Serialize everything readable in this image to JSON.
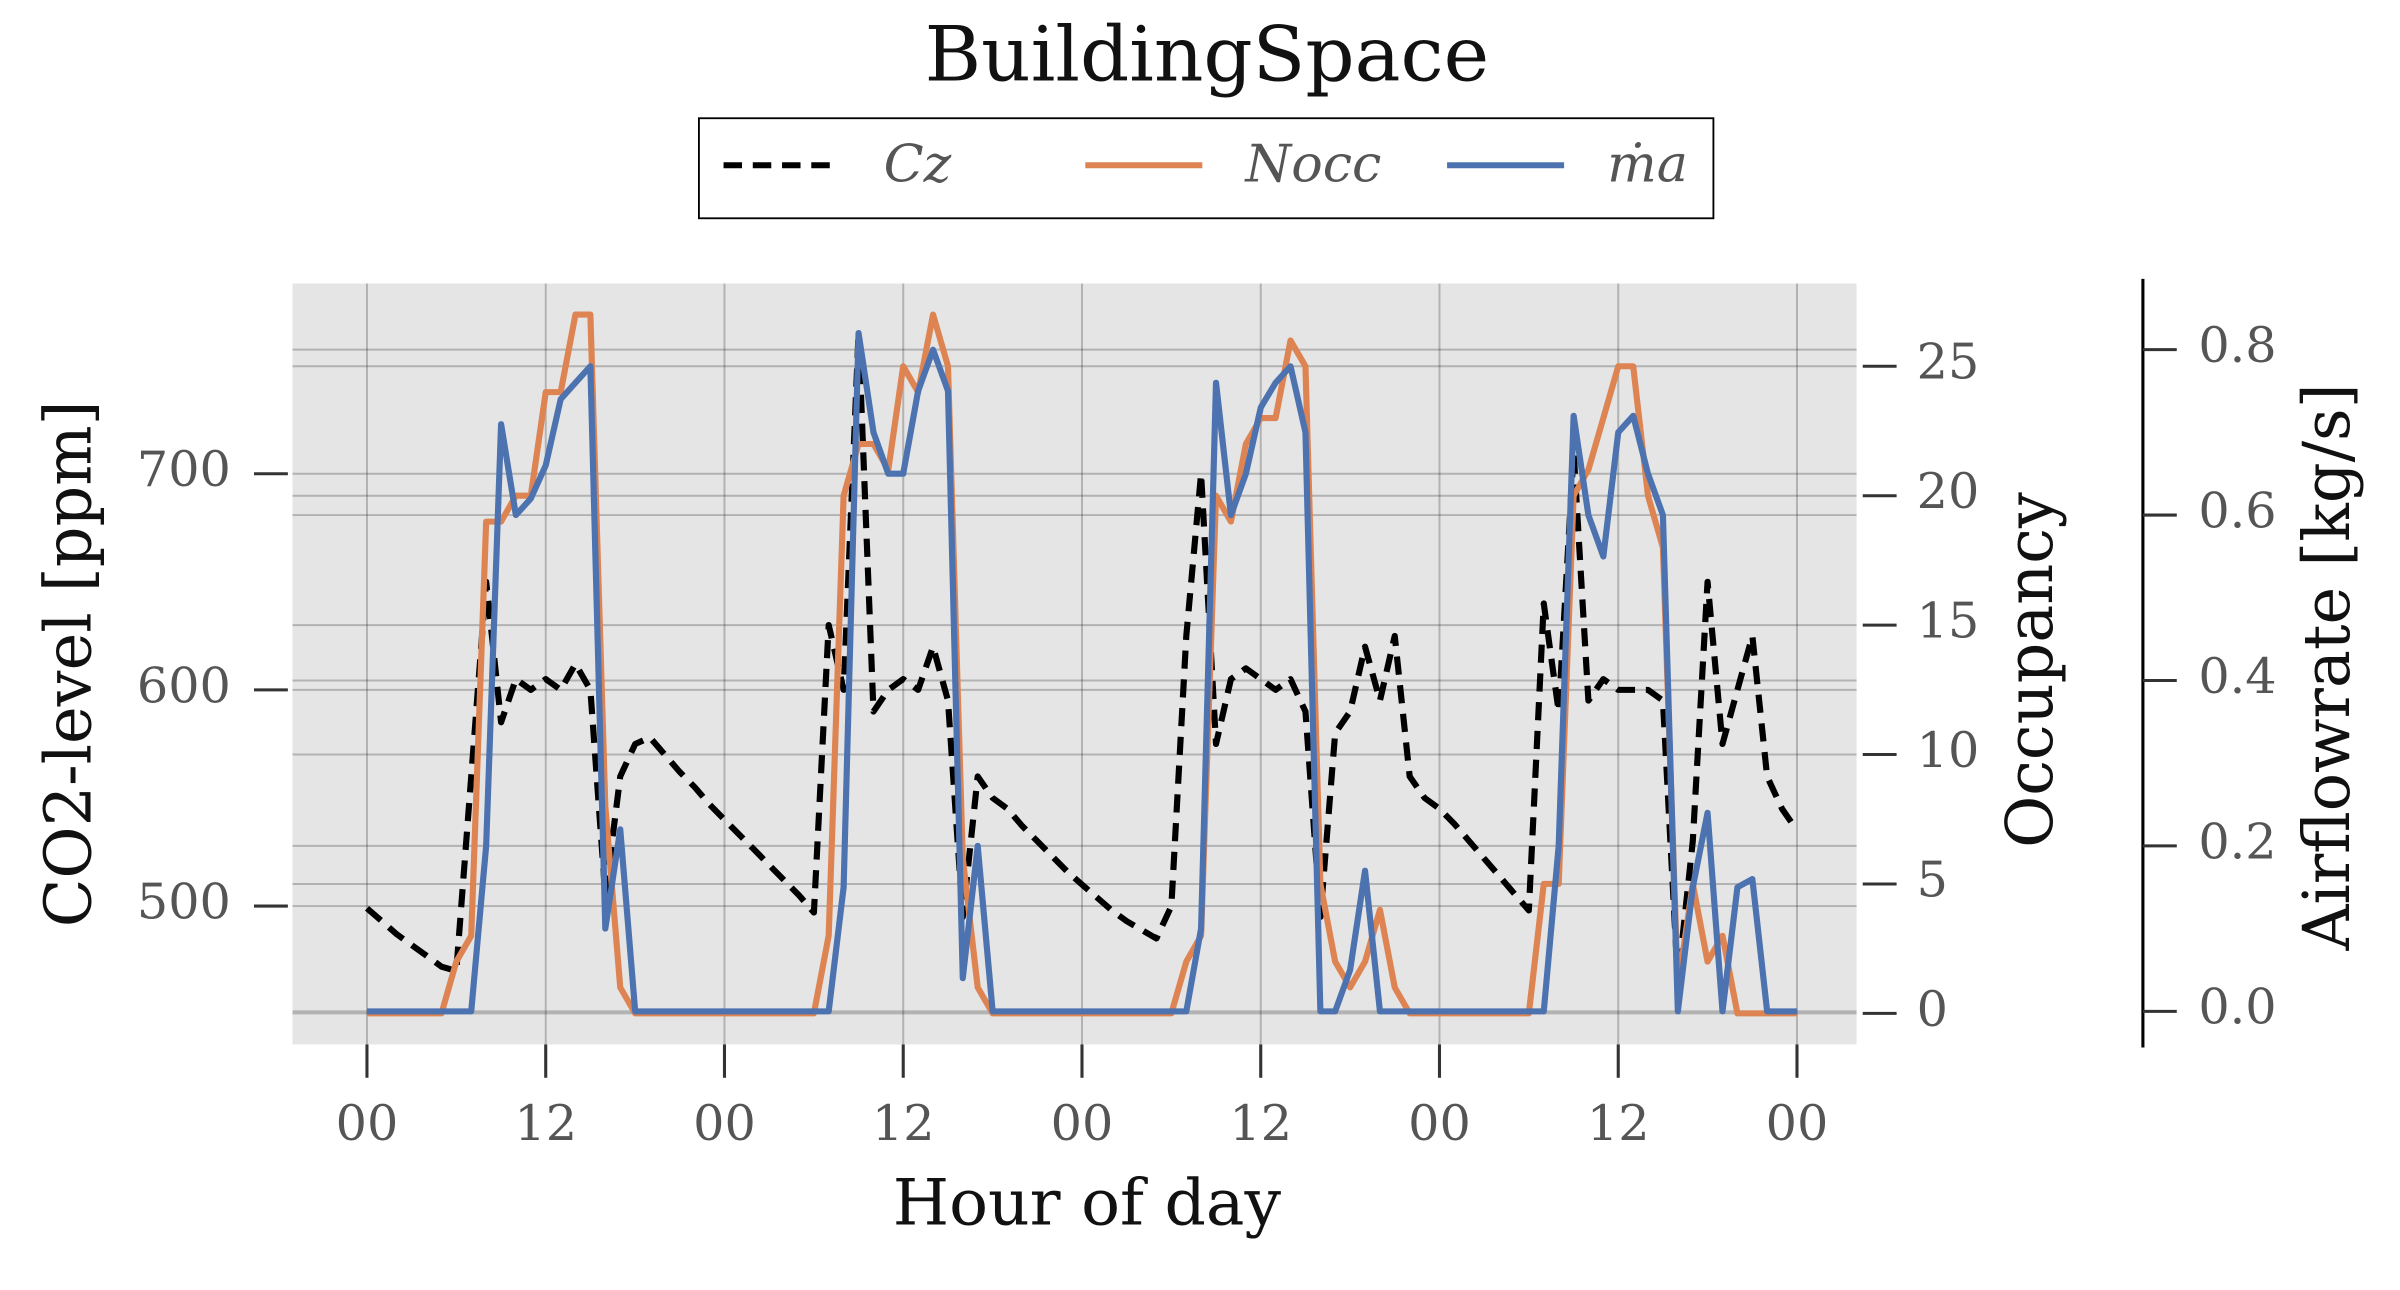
{
  "chart_data": {
    "type": "line",
    "title": "BuildingSpace",
    "x_label": "Hour of day",
    "y_label": "CO2-level [ppm]",
    "y2_label": "Occupancy",
    "y3_label": "Airflowrate [kg/s]",
    "x": [
      0,
      1,
      2,
      3,
      4,
      5,
      6,
      7,
      8,
      9,
      10,
      11,
      12,
      13,
      14,
      15,
      16,
      17,
      18,
      19,
      20,
      21,
      22,
      23,
      24,
      25,
      26,
      27,
      28,
      29,
      30,
      31,
      32,
      33,
      34,
      35,
      36,
      37,
      38,
      39,
      40,
      41,
      42,
      43,
      44,
      45,
      46,
      47,
      48,
      49,
      50,
      51,
      52,
      53,
      54,
      55,
      56,
      57,
      58,
      59,
      60,
      61,
      62,
      63,
      64,
      65,
      66,
      67,
      68,
      69,
      70,
      71,
      72,
      73,
      74,
      75,
      76,
      77,
      78,
      79,
      80,
      81,
      82,
      83,
      84,
      85,
      86,
      87,
      88,
      89,
      90,
      91,
      92,
      93,
      94,
      95,
      96
    ],
    "xlim": [
      -5,
      100
    ],
    "xticks": [
      {
        "value": 0,
        "label": "00"
      },
      12,
      {
        "value": 24,
        "label": "00"
      },
      {
        "value": 36,
        "label": "12"
      },
      {
        "value": 48,
        "label": "00"
      },
      {
        "value": 60,
        "label": "12"
      },
      {
        "value": 72,
        "label": "00"
      },
      {
        "value": 84,
        "label": "12"
      },
      {
        "value": 96,
        "label": "00"
      }
    ],
    "ylim": [
      436,
      788
    ],
    "yticks": [
      500,
      600,
      700
    ],
    "y2lim": [
      -1.2,
      28.2
    ],
    "y2ticks": [
      0,
      5,
      10,
      15,
      20,
      25
    ],
    "y3lim": [
      -0.04,
      0.88
    ],
    "y3ticks": [
      {
        "value": 0,
        "label": "0.0"
      },
      0.2,
      0.4,
      0.6,
      0.8
    ],
    "grid": true,
    "legend": "top",
    "series": [
      {
        "name": "Cz",
        "color": "#000000",
        "dash": true,
        "values": [
          499,
          493,
          487,
          482,
          477,
          472,
          470,
          560,
          650,
          585,
          605,
          600,
          605,
          600,
          612,
          600,
          505,
          560,
          575,
          578,
          570,
          562,
          555,
          547,
          540,
          533,
          526,
          519,
          512,
          505,
          497,
          630,
          600,
          765,
          590,
          600,
          605,
          600,
          620,
          595,
          495,
          560,
          550,
          545,
          537,
          530,
          523,
          516,
          510,
          504,
          498,
          493,
          489,
          485,
          500,
          625,
          700,
          575,
          605,
          610,
          605,
          600,
          605,
          590,
          495,
          580,
          590,
          620,
          595,
          625,
          560,
          550,
          545,
          538,
          530,
          522,
          514,
          506,
          498,
          640,
          590,
          710,
          595,
          605,
          600,
          600,
          600,
          595,
          465,
          530,
          650,
          575,
          600,
          625,
          560,
          545,
          535
        ]
      },
      {
        "name": "Nocc",
        "color": "#dd8452",
        "axis": "y2",
        "values": [
          0,
          0,
          0,
          0,
          0,
          0,
          2,
          3,
          19,
          19,
          20,
          20,
          24,
          24,
          27,
          27,
          8,
          1,
          0,
          0,
          0,
          0,
          0,
          0,
          0,
          0,
          0,
          0,
          0,
          0,
          0,
          3,
          20,
          22,
          22,
          21,
          25,
          24,
          27,
          25,
          6,
          1,
          0,
          0,
          0,
          0,
          0,
          0,
          0,
          0,
          0,
          0,
          0,
          0,
          0,
          2,
          3,
          20,
          19,
          22,
          23,
          23,
          26,
          25,
          5,
          2,
          1,
          2,
          4,
          1,
          0,
          0,
          0,
          0,
          0,
          0,
          0,
          0,
          0,
          5,
          5,
          20,
          21,
          23,
          25,
          25,
          20,
          18,
          1,
          5,
          2,
          3,
          0,
          0,
          0,
          0,
          0
        ]
      },
      {
        "name": "ṁa",
        "color": "#4c72b0",
        "axis": "y3",
        "values": [
          0,
          0,
          0,
          0,
          0,
          0,
          0,
          0,
          0.2,
          0.71,
          0.6,
          0.62,
          0.66,
          0.74,
          0.76,
          0.78,
          0.1,
          0.22,
          0,
          0,
          0,
          0,
          0,
          0,
          0,
          0,
          0,
          0,
          0,
          0,
          0,
          0,
          0.15,
          0.82,
          0.7,
          0.65,
          0.65,
          0.75,
          0.8,
          0.75,
          0.04,
          0.2,
          0,
          0,
          0,
          0,
          0,
          0,
          0,
          0,
          0,
          0,
          0,
          0,
          0,
          0,
          0.1,
          0.76,
          0.6,
          0.65,
          0.73,
          0.76,
          0.78,
          0.7,
          0,
          0,
          0.05,
          0.17,
          0,
          0,
          0,
          0,
          0,
          0,
          0,
          0,
          0,
          0,
          0,
          0,
          0.2,
          0.72,
          0.6,
          0.55,
          0.7,
          0.72,
          0.65,
          0.6,
          0,
          0.15,
          0.24,
          0,
          0.15,
          0.16,
          0,
          0,
          0
        ]
      }
    ]
  }
}
